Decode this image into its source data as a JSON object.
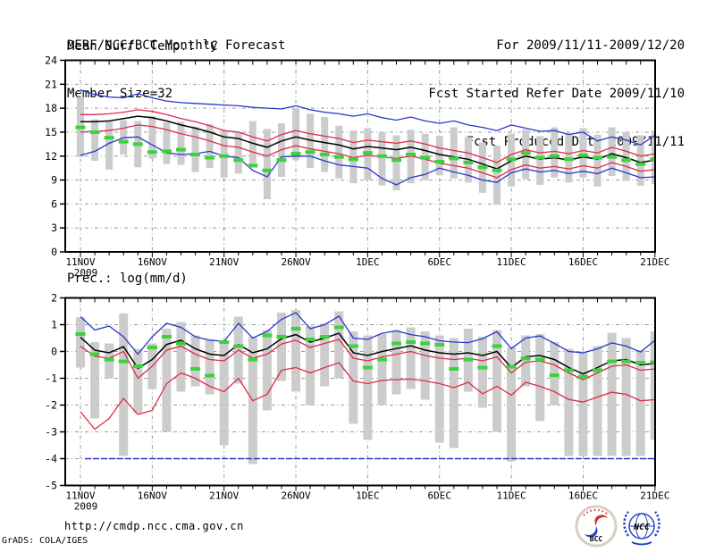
{
  "header": {
    "left": [
      "DERF/NCC/BCC Monthly Forecast",
      "Member Size=32"
    ],
    "right": [
      "For 2009/11/11-2009/12/20",
      "Fcst Started Refer Date 2009/11/10",
      "Fcst Produced Date 2009/11/11"
    ]
  },
  "chart_data": [
    {
      "type": "line",
      "title": "Mean Surf. Temp.: °C",
      "ylim": [
        0,
        24
      ],
      "ytick_step": 3,
      "y_tick_labels": [
        "24",
        "21",
        "18",
        "15",
        "12",
        "9",
        "6",
        "3",
        "0"
      ],
      "x_tick_labels": [
        "11NOV",
        "16NOV",
        "21NOV",
        "26NOV",
        "1DEC",
        "6DEC",
        "11DEC",
        "16DEC",
        "21DEC"
      ],
      "year_label": "2009",
      "n_points": 41,
      "grid": true,
      "legend_position": "none",
      "series": [
        {
          "name": "member-spread-bar",
          "kind": "range-bar",
          "color": "#cccccc",
          "high": [
            19.4,
            16.6,
            16.3,
            16.5,
            16.4,
            17.0,
            16.2,
            16.3,
            15.7,
            16.0,
            15.2,
            15.0,
            16.4,
            15.4,
            16.1,
            18.0,
            17.3,
            16.9,
            15.8,
            15.2,
            15.5,
            15.0,
            14.6,
            15.3,
            14.8,
            14.5,
            15.6,
            14.4,
            13.7,
            13.3,
            14.8,
            15.3,
            14.5,
            15.6,
            14.9,
            15.5,
            14.7,
            15.6,
            15.0,
            14.6,
            15.2
          ],
          "low": [
            11.9,
            11.4,
            10.3,
            12.2,
            10.6,
            11.7,
            11.0,
            10.9,
            10.0,
            10.5,
            9.3,
            9.8,
            10.8,
            6.6,
            9.4,
            11.5,
            10.5,
            10.0,
            9.2,
            8.6,
            9.0,
            8.3,
            7.7,
            8.6,
            9.0,
            9.6,
            9.2,
            8.7,
            7.4,
            5.9,
            8.2,
            9.1,
            8.4,
            9.3,
            8.7,
            9.3,
            8.2,
            9.5,
            8.9,
            8.3,
            8.5
          ]
        },
        {
          "name": "ensemble-max",
          "kind": "line",
          "color": "#2736cc",
          "values": [
            20.3,
            19.7,
            19.4,
            19.3,
            19.8,
            19.3,
            18.9,
            18.7,
            18.6,
            18.5,
            18.4,
            18.3,
            18.1,
            18.0,
            17.9,
            18.3,
            17.8,
            17.5,
            17.3,
            17.0,
            17.3,
            16.8,
            16.5,
            16.9,
            16.4,
            16.1,
            16.4,
            15.9,
            15.6,
            15.2,
            15.9,
            15.5,
            15.1,
            15.2,
            14.7,
            15.0,
            13.9,
            14.4,
            14.0,
            13.4,
            14.6
          ]
        },
        {
          "name": "percentile-75",
          "kind": "line",
          "color": "#de2c47",
          "values": [
            17.2,
            17.2,
            17.3,
            17.5,
            17.8,
            17.6,
            17.2,
            16.7,
            16.3,
            15.8,
            15.2,
            15.0,
            14.4,
            13.9,
            14.7,
            15.2,
            14.8,
            14.5,
            14.2,
            13.7,
            14.0,
            13.8,
            13.6,
            13.9,
            13.5,
            13.0,
            12.7,
            12.4,
            11.8,
            11.2,
            12.2,
            12.8,
            12.4,
            12.6,
            12.3,
            12.7,
            12.4,
            13.1,
            12.6,
            12.0,
            12.3
          ]
        },
        {
          "name": "ensemble-mean",
          "kind": "line",
          "color": "#000000",
          "values": [
            16.3,
            16.3,
            16.4,
            16.7,
            17.0,
            16.8,
            16.4,
            15.9,
            15.5,
            15.0,
            14.4,
            14.2,
            13.6,
            13.1,
            13.9,
            14.4,
            14.0,
            13.7,
            13.4,
            12.9,
            13.2,
            13.0,
            12.8,
            13.1,
            12.7,
            12.2,
            11.9,
            11.6,
            11.0,
            10.4,
            11.4,
            12.0,
            11.6,
            11.8,
            11.5,
            11.9,
            11.6,
            12.3,
            11.8,
            11.2,
            11.5
          ]
        },
        {
          "name": "percentile-25",
          "kind": "line",
          "color": "#de2c47",
          "values": [
            15.0,
            15.1,
            15.2,
            15.5,
            15.9,
            15.7,
            15.3,
            14.8,
            14.4,
            13.9,
            13.3,
            13.1,
            12.5,
            12.0,
            12.8,
            13.3,
            12.9,
            12.6,
            12.3,
            11.8,
            12.1,
            11.9,
            11.7,
            12.0,
            11.6,
            11.1,
            10.8,
            10.5,
            9.9,
            9.3,
            10.3,
            10.9,
            10.5,
            10.7,
            10.4,
            10.8,
            10.5,
            11.2,
            10.7,
            10.1,
            10.3
          ]
        },
        {
          "name": "ensemble-min",
          "kind": "line",
          "color": "#2736cc",
          "values": [
            12.1,
            12.6,
            13.6,
            14.3,
            14.4,
            13.4,
            12.4,
            12.2,
            12.3,
            12.6,
            12.0,
            11.8,
            10.2,
            9.4,
            11.9,
            12.0,
            12.0,
            11.4,
            10.9,
            10.7,
            10.5,
            9.2,
            8.4,
            9.3,
            9.7,
            10.5,
            10.0,
            9.6,
            9.0,
            8.7,
            9.9,
            10.4,
            10.0,
            10.2,
            9.8,
            10.1,
            9.8,
            10.5,
            9.9,
            9.3,
            9.4
          ]
        },
        {
          "name": "observation-dash",
          "kind": "marks",
          "color": "#3cd23c",
          "values": [
            15.6,
            15.0,
            14.3,
            13.8,
            13.5,
            12.5,
            12.6,
            12.8,
            12.2,
            11.8,
            12.0,
            11.5,
            10.8,
            10.2,
            11.5,
            12.3,
            12.5,
            12.2,
            11.9,
            11.6,
            12.4,
            12.0,
            11.5,
            12.2,
            11.8,
            11.3,
            11.7,
            11.2,
            10.6,
            10.2,
            11.6,
            12.4,
            11.8,
            12.0,
            11.6,
            12.1,
            11.8,
            11.9,
            11.5,
            11.0,
            11.6
          ]
        }
      ]
    },
    {
      "type": "line",
      "title": "Prec.: log(mm/d)",
      "ylim": [
        -5,
        2
      ],
      "ytick_step": 1,
      "y_tick_labels": [
        "2",
        "1",
        "0",
        "-1",
        "-2",
        "-3",
        "-4",
        "-5"
      ],
      "x_tick_labels": [
        "11NOV",
        "16NOV",
        "21NOV",
        "26NOV",
        "1DEC",
        "6DEC",
        "11DEC",
        "16DEC",
        "21DEC"
      ],
      "year_label": "2009",
      "n_points": 41,
      "grid": true,
      "legend_position": "none",
      "baseline": {
        "value": -4,
        "color": "#2736cc"
      },
      "series": [
        {
          "name": "member-spread-bar",
          "kind": "range-bar",
          "color": "#cccccc",
          "high": [
            1.28,
            0.35,
            0.3,
            1.42,
            0.1,
            0.3,
            0.85,
            1.1,
            0.6,
            0.45,
            0.4,
            1.3,
            0.55,
            0.8,
            1.45,
            1.55,
            0.95,
            1.05,
            1.5,
            0.75,
            0.6,
            0.65,
            0.8,
            0.9,
            0.75,
            0.6,
            0.5,
            0.85,
            0.55,
            0.8,
            0.15,
            0.6,
            0.65,
            0.35,
            0.1,
            0.0,
            0.2,
            0.7,
            0.5,
            0.05,
            0.75
          ],
          "low": [
            -0.6,
            -2.5,
            -1.0,
            -3.9,
            -2.3,
            -1.4,
            -3.0,
            -1.5,
            -1.3,
            -1.6,
            -3.5,
            -1.2,
            -4.2,
            -2.2,
            -1.1,
            -1.5,
            -2.0,
            -1.3,
            -1.0,
            -2.7,
            -3.3,
            -2.0,
            -1.6,
            -1.4,
            -1.8,
            -3.4,
            -3.6,
            -1.5,
            -2.1,
            -3.0,
            -4.1,
            -1.3,
            -2.6,
            -2.0,
            -3.9,
            -3.9,
            -3.9,
            -3.9,
            -3.9,
            -3.9,
            -3.3
          ]
        },
        {
          "name": "ensemble-max",
          "kind": "line",
          "color": "#2736cc",
          "values": [
            1.3,
            0.8,
            0.95,
            0.55,
            -0.1,
            0.55,
            1.05,
            0.9,
            0.55,
            0.42,
            0.38,
            1.05,
            0.5,
            0.75,
            1.2,
            1.45,
            0.85,
            1.0,
            1.32,
            0.5,
            0.45,
            0.68,
            0.77,
            0.63,
            0.55,
            0.4,
            0.35,
            0.33,
            0.48,
            0.74,
            0.11,
            0.5,
            0.58,
            0.3,
            0.0,
            -0.05,
            0.1,
            0.32,
            0.2,
            -0.02,
            0.42
          ]
        },
        {
          "name": "ensemble-mean",
          "kind": "line",
          "color": "#000000",
          "values": [
            0.53,
            0.05,
            -0.05,
            0.18,
            -0.63,
            -0.3,
            0.26,
            0.42,
            0.1,
            -0.1,
            -0.15,
            0.26,
            -0.05,
            0.1,
            0.48,
            0.63,
            0.35,
            0.5,
            0.68,
            -0.05,
            -0.15,
            0.0,
            0.11,
            0.21,
            0.05,
            -0.05,
            -0.1,
            -0.05,
            -0.15,
            0.0,
            -0.6,
            -0.2,
            -0.15,
            -0.3,
            -0.6,
            -0.84,
            -0.6,
            -0.35,
            -0.3,
            -0.5,
            -0.45
          ]
        },
        {
          "name": "percentile-75",
          "kind": "line",
          "color": "#de2c47",
          "values": [
            0.2,
            -0.18,
            -0.25,
            0.0,
            -1.0,
            -0.55,
            0.05,
            0.2,
            -0.1,
            -0.3,
            -0.35,
            0.05,
            -0.25,
            -0.1,
            0.28,
            0.42,
            0.15,
            0.3,
            0.45,
            -0.25,
            -0.35,
            -0.2,
            -0.1,
            0.0,
            -0.15,
            -0.25,
            -0.3,
            -0.25,
            -0.35,
            -0.2,
            -0.8,
            -0.4,
            -0.35,
            -0.5,
            -0.8,
            -1.05,
            -0.8,
            -0.55,
            -0.5,
            -0.7,
            -0.65
          ]
        },
        {
          "name": "percentile-25",
          "kind": "line",
          "color": "#de2c47",
          "values": [
            -2.25,
            -2.9,
            -2.5,
            -1.75,
            -2.35,
            -2.2,
            -1.2,
            -0.8,
            -1.0,
            -1.3,
            -1.5,
            -1.0,
            -1.84,
            -1.6,
            -0.7,
            -0.6,
            -0.8,
            -0.6,
            -0.42,
            -1.1,
            -1.2,
            -1.08,
            -1.05,
            -1.03,
            -1.1,
            -1.2,
            -1.35,
            -1.15,
            -1.58,
            -1.3,
            -1.63,
            -1.15,
            -1.3,
            -1.5,
            -1.79,
            -1.89,
            -1.7,
            -1.52,
            -1.6,
            -1.84,
            -1.8
          ]
        },
        {
          "name": "observation-dash",
          "kind": "marks",
          "color": "#3cd23c",
          "values": [
            0.65,
            -0.1,
            -0.3,
            -0.37,
            -0.55,
            0.15,
            0.55,
            0.3,
            -0.65,
            -0.9,
            0.35,
            0.2,
            -0.3,
            0.6,
            0.55,
            0.85,
            0.45,
            0.55,
            0.9,
            0.2,
            -0.6,
            -0.3,
            0.3,
            0.35,
            0.3,
            0.25,
            -0.65,
            -0.3,
            -0.6,
            0.2,
            -0.57,
            -0.26,
            -0.3,
            -0.89,
            -0.7,
            -0.94,
            -0.7,
            -0.37,
            -0.37,
            -0.42,
            -0.4
          ]
        }
      ]
    }
  ],
  "footer": {
    "url": "http://cmdp.ncc.cma.gov.cn",
    "credit": "GrADS: COLA/IGES",
    "logos": {
      "bcc": "BCC",
      "ncc": "NCC"
    }
  },
  "colors": {
    "envelope": "#2736cc",
    "quartile": "#de2c47",
    "mean": "#000000",
    "observation": "#3cd23c",
    "spread_bar": "#cccccc",
    "grid": "#9a9a9a"
  }
}
